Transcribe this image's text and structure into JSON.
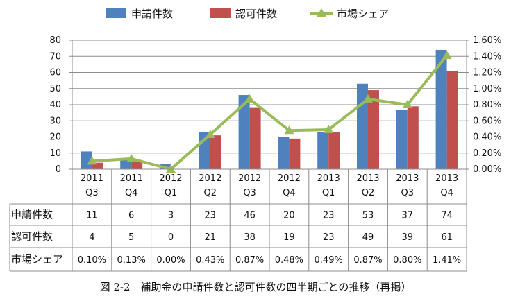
{
  "chart_data": {
    "type": "bar",
    "categories": [
      [
        "2011",
        "Q3"
      ],
      [
        "2011",
        "Q4"
      ],
      [
        "2012",
        "Q1"
      ],
      [
        "2012",
        "Q2"
      ],
      [
        "2012",
        "Q3"
      ],
      [
        "2012",
        "Q4"
      ],
      [
        "2013",
        "Q1"
      ],
      [
        "2013",
        "Q2"
      ],
      [
        "2013",
        "Q3"
      ],
      [
        "2013",
        "Q4"
      ]
    ],
    "series": [
      {
        "name": "申請件数",
        "kind": "bar",
        "axis": "left",
        "color": "#4f81bd",
        "values": [
          11,
          6,
          3,
          23,
          46,
          20,
          23,
          53,
          37,
          74
        ]
      },
      {
        "name": "認可件数",
        "kind": "bar",
        "axis": "left",
        "color": "#c0504d",
        "values": [
          4,
          5,
          0,
          21,
          38,
          19,
          23,
          49,
          39,
          61
        ]
      },
      {
        "name": "市場シェア",
        "kind": "line",
        "axis": "right",
        "color": "#9bbb59",
        "values": [
          0.1,
          0.13,
          0.0,
          0.43,
          0.87,
          0.48,
          0.49,
          0.87,
          0.8,
          1.41
        ]
      }
    ],
    "y_left": {
      "min": 0,
      "max": 80,
      "ticks": [
        "0",
        "10",
        "20",
        "30",
        "40",
        "50",
        "60",
        "70",
        "80"
      ]
    },
    "y_right": {
      "min": 0,
      "max": 1.6,
      "ticks": [
        "0.00%",
        "0.20%",
        "0.40%",
        "0.60%",
        "0.80%",
        "1.00%",
        "1.20%",
        "1.40%",
        "1.60%"
      ]
    },
    "grid": "horizontal",
    "legend": "top",
    "data_table": {
      "rows": [
        {
          "label": "申請件数",
          "cells": [
            "11",
            "6",
            "3",
            "23",
            "46",
            "20",
            "23",
            "53",
            "37",
            "74"
          ]
        },
        {
          "label": "認可件数",
          "cells": [
            "4",
            "5",
            "0",
            "21",
            "38",
            "19",
            "23",
            "49",
            "39",
            "61"
          ]
        },
        {
          "label": "市場シェア",
          "cells": [
            "0.10%",
            "0.13%",
            "0.00%",
            "0.43%",
            "0.87%",
            "0.48%",
            "0.49%",
            "0.87%",
            "0.80%",
            "1.41%"
          ]
        }
      ]
    }
  },
  "caption": "図 2-2　補助金の申請件数と認可件数の四半期ごとの推移（再掲）"
}
